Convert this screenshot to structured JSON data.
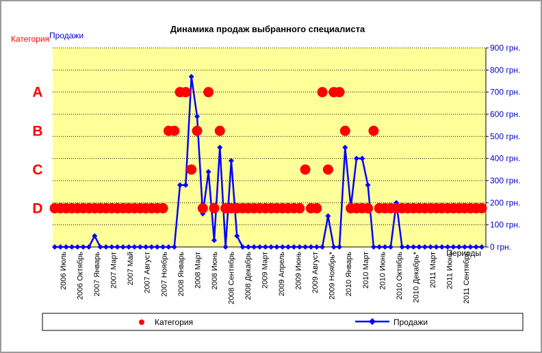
{
  "chart_data": {
    "type": "line",
    "title": "Динамика продаж выбранного специалиста",
    "left_axis_title": "Категория",
    "right_axis_title": "Продажи",
    "xlabel": "Периоды",
    "category_labels": [
      "A",
      "B",
      "C",
      "D"
    ],
    "right_ticks": [
      "0 грн.",
      "100 грн.",
      "200 грн.",
      "300 грн.",
      "400 грн.",
      "500 грн.",
      "600 грн.",
      "700 грн.",
      "800 грн.",
      "900 грн."
    ],
    "ylim": [
      0,
      900
    ],
    "category_levels": {
      "A": 700,
      "B": 525,
      "C": 350,
      "D": 175
    },
    "x_labels": [
      "2006 Июль",
      "2006 Октябрь",
      "2007 Январь",
      "2007 Март",
      "2007 Май",
      "2007 Август",
      "2007 Ноябрь",
      "2008 Январь",
      "2008 Март",
      "2008 Июнь",
      "2008 Сентябрь",
      "2008 Декабрь",
      "2009 Март",
      "2009 Апрель",
      "2009 Июнь",
      "2009 Август",
      "2009 Ноябрь*",
      "2010 Январь",
      "2010 Март",
      "2010 Июнь",
      "2010 Октябрь",
      "2010 Декабрь*",
      "2011 Март",
      "2011 Июнь",
      "2011 Сентябрь"
    ],
    "series": [
      {
        "name": "Продажи",
        "color": "#0000ff",
        "marker": "diamond",
        "values": [
          0,
          0,
          0,
          0,
          0,
          0,
          0,
          50,
          0,
          0,
          0,
          0,
          0,
          0,
          0,
          0,
          0,
          0,
          0,
          0,
          0,
          0,
          280,
          280,
          770,
          590,
          150,
          340,
          30,
          450,
          0,
          390,
          50,
          0,
          0,
          0,
          0,
          0,
          0,
          0,
          0,
          0,
          0,
          0,
          0,
          0,
          0,
          0,
          140,
          0,
          0,
          450,
          180,
          400,
          400,
          280,
          0,
          0,
          0,
          0,
          200,
          0,
          0,
          0,
          0,
          0,
          0,
          0,
          0,
          0,
          0,
          0,
          0,
          0,
          0,
          0
        ]
      },
      {
        "name": "Категория",
        "color": "#ff0000",
        "marker": "circle",
        "values": [
          "D",
          "D",
          "D",
          "D",
          "D",
          "D",
          "D",
          "D",
          "D",
          "D",
          "D",
          "D",
          "D",
          "D",
          "D",
          "D",
          "D",
          "D",
          "D",
          "D",
          "B",
          "B",
          "A",
          "A",
          "C",
          "B",
          "D",
          "A",
          "D",
          "B",
          "D",
          "D",
          "D",
          "D",
          "D",
          "D",
          "D",
          "D",
          "D",
          "D",
          "D",
          "D",
          "D",
          "D",
          "C",
          "D",
          "D",
          "A",
          "C",
          "A",
          "A",
          "B",
          "D",
          "D",
          "D",
          "D",
          "B",
          "D",
          "D",
          "D",
          "D",
          "D",
          "D",
          "D",
          "D",
          "D",
          "D",
          "D",
          "D",
          "D",
          "D",
          "D",
          "D",
          "D",
          "D",
          "D"
        ]
      }
    ],
    "legend": [
      "Категория",
      "Продажи"
    ],
    "legend_position": "bottom",
    "plot_bg": "#ffff99",
    "grid": "dotted horizontal"
  }
}
